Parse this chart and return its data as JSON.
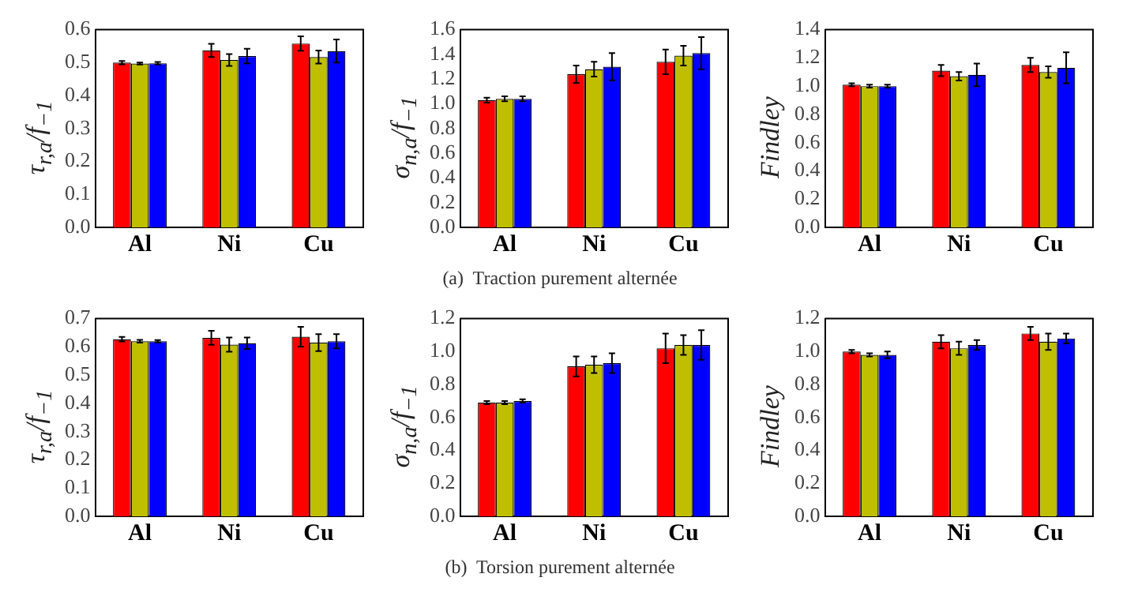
{
  "chart_data": [
    {
      "type": "bar",
      "ylabel": "τ$_{r,a}$/f$_{−1}$",
      "categories": [
        "Al",
        "Ni",
        "Cu"
      ],
      "ylim": [
        0,
        0.6
      ],
      "yticks": [
        {
          "value": 0,
          "label": "0.0"
        },
        {
          "value": 0.1,
          "label": "0.1"
        },
        {
          "value": 0.2,
          "label": "0.2"
        },
        {
          "value": 0.3,
          "label": "0.3"
        },
        {
          "value": 0.4,
          "label": "0.4"
        },
        {
          "value": 0.5,
          "label": "0.5"
        },
        {
          "value": 0.6,
          "label": "0.6"
        }
      ],
      "grid": false,
      "legend": false,
      "series": [
        {
          "color": "#ff0000",
          "values": [
            0.5,
            0.537,
            0.558
          ],
          "errors": [
            0.005,
            0.02,
            0.022
          ]
        },
        {
          "color": "#bfbf00",
          "values": [
            0.497,
            0.508,
            0.517
          ],
          "errors": [
            0.003,
            0.018,
            0.02
          ]
        },
        {
          "color": "#0000ff",
          "values": [
            0.498,
            0.52,
            0.535
          ],
          "errors": [
            0.004,
            0.022,
            0.035
          ]
        }
      ]
    },
    {
      "type": "bar",
      "ylabel": "σ$_{n,a}$/f$_{−1}$",
      "categories": [
        "Al",
        "Ni",
        "Cu"
      ],
      "ylim": [
        0,
        1.6
      ],
      "yticks": [
        {
          "value": 0,
          "label": "0.0"
        },
        {
          "value": 0.2,
          "label": "0.2"
        },
        {
          "value": 0.4,
          "label": "0.4"
        },
        {
          "value": 0.6,
          "label": "0.6"
        },
        {
          "value": 0.8,
          "label": "0.8"
        },
        {
          "value": 1,
          "label": "1.0"
        },
        {
          "value": 1.2,
          "label": "1.2"
        },
        {
          "value": 1.4,
          "label": "1.4"
        },
        {
          "value": 1.6,
          "label": "1.6"
        }
      ],
      "grid": false,
      "legend": false,
      "annotations": [
        "(a)  Traction purement alternée"
      ],
      "series": [
        {
          "color": "#ff0000",
          "values": [
            1.03,
            1.24,
            1.34
          ],
          "errors": [
            0.02,
            0.07,
            0.1
          ]
        },
        {
          "color": "#bfbf00",
          "values": [
            1.04,
            1.28,
            1.39
          ],
          "errors": [
            0.02,
            0.06,
            0.08
          ]
        },
        {
          "color": "#0000ff",
          "values": [
            1.04,
            1.3,
            1.41
          ],
          "errors": [
            0.02,
            0.11,
            0.13
          ]
        }
      ]
    },
    {
      "type": "bar",
      "ylabel": "Findley",
      "categories": [
        "Al",
        "Ni",
        "Cu"
      ],
      "ylim": [
        0,
        1.4
      ],
      "yticks": [
        {
          "value": 0,
          "label": "0.0"
        },
        {
          "value": 0.2,
          "label": "0.2"
        },
        {
          "value": 0.4,
          "label": "0.4"
        },
        {
          "value": 0.6,
          "label": "0.6"
        },
        {
          "value": 0.8,
          "label": "0.8"
        },
        {
          "value": 1,
          "label": "1.0"
        },
        {
          "value": 1.2,
          "label": "1.2"
        },
        {
          "value": 1.4,
          "label": "1.4"
        }
      ],
      "grid": false,
      "legend": false,
      "series": [
        {
          "color": "#ff0000",
          "values": [
            1.01,
            1.11,
            1.15
          ],
          "errors": [
            0.01,
            0.04,
            0.05
          ]
        },
        {
          "color": "#bfbf00",
          "values": [
            1.0,
            1.07,
            1.1
          ],
          "errors": [
            0.01,
            0.03,
            0.04
          ]
        },
        {
          "color": "#0000ff",
          "values": [
            1.0,
            1.08,
            1.13
          ],
          "errors": [
            0.01,
            0.08,
            0.11
          ]
        }
      ]
    },
    {
      "type": "bar",
      "ylabel": "τ$_{r,a}$/f$_{−1}$",
      "categories": [
        "Al",
        "Ni",
        "Cu"
      ],
      "ylim": [
        0,
        0.7
      ],
      "yticks": [
        {
          "value": 0,
          "label": "0.0"
        },
        {
          "value": 0.1,
          "label": "0.1"
        },
        {
          "value": 0.2,
          "label": "0.2"
        },
        {
          "value": 0.3,
          "label": "0.3"
        },
        {
          "value": 0.4,
          "label": "0.4"
        },
        {
          "value": 0.5,
          "label": "0.5"
        },
        {
          "value": 0.6,
          "label": "0.6"
        },
        {
          "value": 0.7,
          "label": "0.7"
        }
      ],
      "grid": false,
      "legend": false,
      "series": [
        {
          "color": "#ff0000",
          "values": [
            0.627,
            0.632,
            0.636
          ],
          "errors": [
            0.008,
            0.025,
            0.035
          ]
        },
        {
          "color": "#bfbf00",
          "values": [
            0.62,
            0.608,
            0.615
          ],
          "errors": [
            0.005,
            0.025,
            0.03
          ]
        },
        {
          "color": "#0000ff",
          "values": [
            0.62,
            0.613,
            0.62
          ],
          "errors": [
            0.004,
            0.02,
            0.025
          ]
        }
      ]
    },
    {
      "type": "bar",
      "ylabel": "σ$_{n,a}$/f$_{−1}$",
      "categories": [
        "Al",
        "Ni",
        "Cu"
      ],
      "ylim": [
        0,
        1.2
      ],
      "yticks": [
        {
          "value": 0,
          "label": "0.0"
        },
        {
          "value": 0.2,
          "label": "0.2"
        },
        {
          "value": 0.4,
          "label": "0.4"
        },
        {
          "value": 0.6,
          "label": "0.6"
        },
        {
          "value": 0.8,
          "label": "0.8"
        },
        {
          "value": 1,
          "label": "1.0"
        },
        {
          "value": 1.2,
          "label": "1.2"
        }
      ],
      "grid": false,
      "legend": false,
      "annotations": [
        "(b)  Torsion purement alternée"
      ],
      "series": [
        {
          "color": "#ff0000",
          "values": [
            0.69,
            0.91,
            1.02
          ],
          "errors": [
            0.01,
            0.06,
            0.09
          ]
        },
        {
          "color": "#bfbf00",
          "values": [
            0.69,
            0.92,
            1.04
          ],
          "errors": [
            0.01,
            0.05,
            0.06
          ]
        },
        {
          "color": "#0000ff",
          "values": [
            0.7,
            0.93,
            1.04
          ],
          "errors": [
            0.01,
            0.06,
            0.09
          ]
        }
      ]
    },
    {
      "type": "bar",
      "ylabel": "Findley",
      "categories": [
        "Al",
        "Ni",
        "Cu"
      ],
      "ylim": [
        0,
        1.2
      ],
      "yticks": [
        {
          "value": 0,
          "label": "0.0"
        },
        {
          "value": 0.2,
          "label": "0.2"
        },
        {
          "value": 0.4,
          "label": "0.4"
        },
        {
          "value": 0.6,
          "label": "0.6"
        },
        {
          "value": 0.8,
          "label": "0.8"
        },
        {
          "value": 1,
          "label": "1.0"
        },
        {
          "value": 1.2,
          "label": "1.2"
        }
      ],
      "grid": false,
      "legend": false,
      "series": [
        {
          "color": "#ff0000",
          "values": [
            1.0,
            1.06,
            1.11
          ],
          "errors": [
            0.01,
            0.04,
            0.04
          ]
        },
        {
          "color": "#bfbf00",
          "values": [
            0.98,
            1.02,
            1.06
          ],
          "errors": [
            0.01,
            0.04,
            0.05
          ]
        },
        {
          "color": "#0000ff",
          "values": [
            0.98,
            1.04,
            1.08
          ],
          "errors": [
            0.02,
            0.03,
            0.03
          ]
        }
      ]
    }
  ]
}
